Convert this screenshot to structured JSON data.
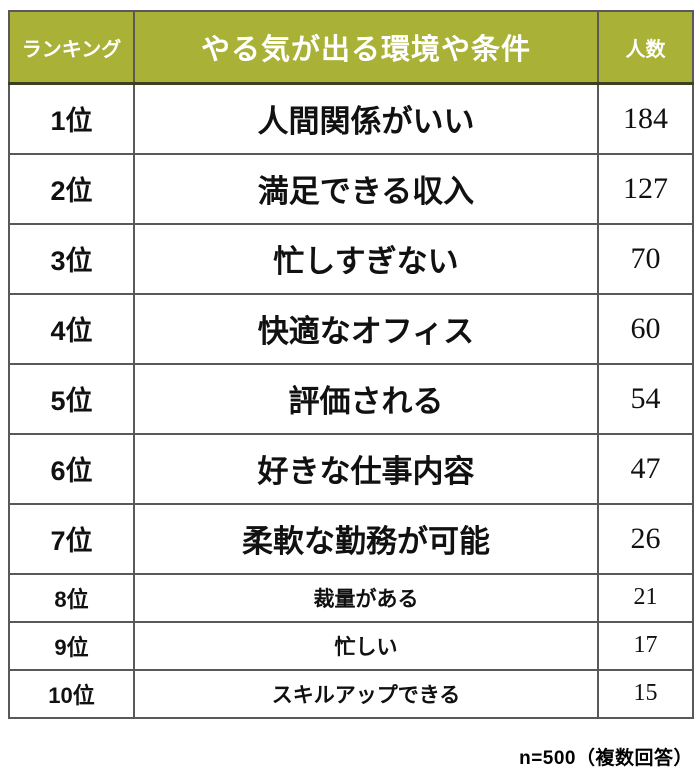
{
  "chart_data": {
    "type": "table",
    "title": "やる気が出る環境や条件",
    "columns": [
      "ランキング",
      "やる気が出る環境や条件",
      "人数"
    ],
    "categories": [
      "人間関係がいい",
      "満足できる収入",
      "忙しすぎない",
      "快適なオフィス",
      "評価される",
      "好きな仕事内容",
      "柔軟な勤務が可能",
      "裁量がある",
      "忙しい",
      "スキルアップできる"
    ],
    "values": [
      184,
      127,
      70,
      60,
      54,
      47,
      26,
      21,
      17,
      15
    ],
    "note": "n=500（複数回答）"
  },
  "table": {
    "headers": {
      "rank": "ランキング",
      "condition": "やる気が出る環境や条件",
      "count": "人数"
    },
    "rows": [
      {
        "rank": "1位",
        "condition": "人間関係がいい",
        "count": "184",
        "size": "large"
      },
      {
        "rank": "2位",
        "condition": "満足できる収入",
        "count": "127",
        "size": "large"
      },
      {
        "rank": "3位",
        "condition": "忙しすぎない",
        "count": "70",
        "size": "large"
      },
      {
        "rank": "4位",
        "condition": "快適なオフィス",
        "count": "60",
        "size": "large"
      },
      {
        "rank": "5位",
        "condition": "評価される",
        "count": "54",
        "size": "large"
      },
      {
        "rank": "6位",
        "condition": "好きな仕事内容",
        "count": "47",
        "size": "large"
      },
      {
        "rank": "7位",
        "condition": "柔軟な勤務が可能",
        "count": "26",
        "size": "large"
      },
      {
        "rank": "8位",
        "condition": "裁量がある",
        "count": "21",
        "size": "small"
      },
      {
        "rank": "9位",
        "condition": "忙しい",
        "count": "17",
        "size": "small"
      },
      {
        "rank": "10位",
        "condition": "スキルアップできる",
        "count": "15",
        "size": "small"
      }
    ],
    "footer_note": "n=500（複数回答）"
  },
  "colors": {
    "header_bg": "#a9b236",
    "header_text": "#ffffff",
    "outer_border": "#3d3d3d",
    "inner_border": "#595959",
    "body_text": "#111111"
  }
}
